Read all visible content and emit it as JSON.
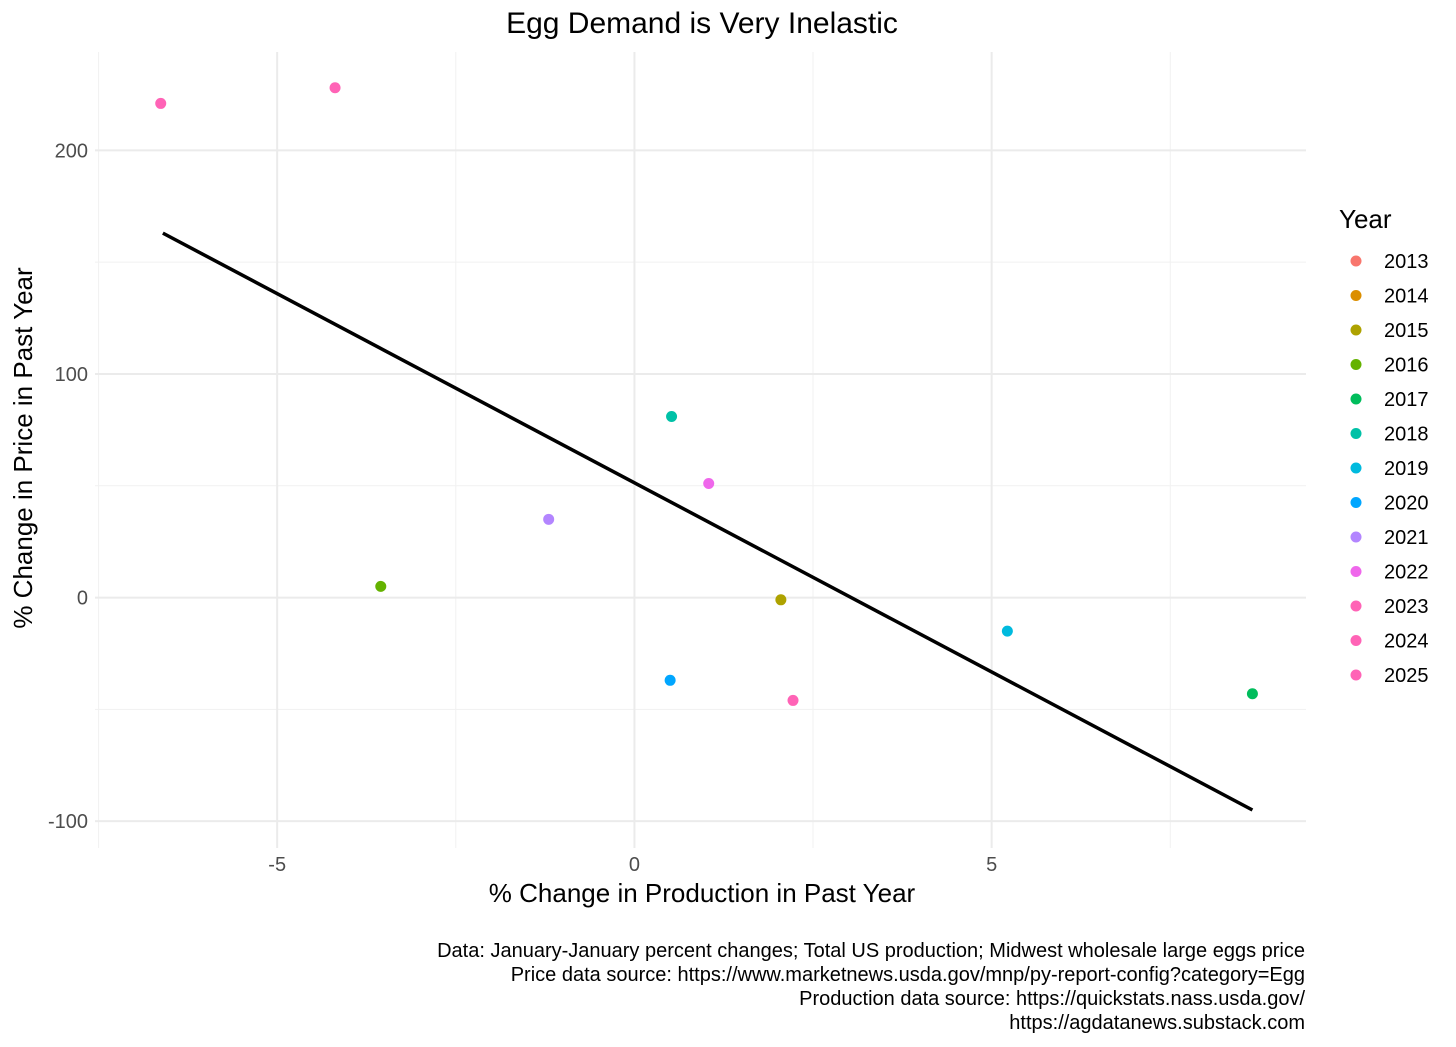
{
  "chart_data": {
    "type": "scatter",
    "title": "Egg Demand is Very Inelastic",
    "xlabel": "% Change in Production in Past Year",
    "ylabel": "% Change in Price in Past Year",
    "xlim": [
      -7.55,
      9.4
    ],
    "ylim": [
      -112,
      244
    ],
    "x_ticks": [
      -5,
      0,
      5
    ],
    "x_tick_labels": [
      "-5",
      "0",
      "5"
    ],
    "y_ticks": [
      -100,
      0,
      100,
      200
    ],
    "y_tick_labels": [
      "-100",
      "0",
      "100",
      "200"
    ],
    "grid": true,
    "legend_title": "Year",
    "legend_position": "right",
    "series": [
      {
        "name": "2013",
        "color": "#F8766D",
        "points": []
      },
      {
        "name": "2014",
        "color": "#DB8E00",
        "points": []
      },
      {
        "name": "2015",
        "color": "#AEA200",
        "points": [
          [
            2.05,
            -1
          ]
        ]
      },
      {
        "name": "2016",
        "color": "#64B200",
        "points": [
          [
            -3.55,
            5
          ]
        ]
      },
      {
        "name": "2017",
        "color": "#00BD5C",
        "points": [
          [
            8.65,
            -43
          ]
        ]
      },
      {
        "name": "2018",
        "color": "#00C1A7",
        "points": [
          [
            0.52,
            81
          ]
        ]
      },
      {
        "name": "2019",
        "color": "#00BADE",
        "points": [
          [
            5.22,
            -15
          ]
        ]
      },
      {
        "name": "2020",
        "color": "#00A6FF",
        "points": [
          [
            0.5,
            -37
          ]
        ]
      },
      {
        "name": "2021",
        "color": "#B385FF",
        "points": [
          [
            -1.2,
            35
          ]
        ]
      },
      {
        "name": "2022",
        "color": "#EF67EB",
        "points": [
          [
            1.04,
            51
          ]
        ]
      },
      {
        "name": "2023",
        "color": "#FF63B6",
        "points": [
          [
            -6.63,
            221
          ]
        ]
      },
      {
        "name": "2024",
        "color": "#FF63B6",
        "points": [
          [
            2.22,
            -46
          ]
        ]
      },
      {
        "name": "2025",
        "color": "#FF63B6",
        "points": [
          [
            -4.19,
            228
          ]
        ]
      }
    ],
    "fit_line": {
      "color": "#000000",
      "x": [
        -6.6,
        8.65
      ],
      "y": [
        163,
        -95
      ]
    },
    "captions": [
      "Data: January-January percent changes; Total US production; Midwest wholesale large eggs price",
      "Price data source: https://www.marketnews.usda.gov/mnp/py-report-config?category=Egg",
      "Production data source: https://quickstats.nass.usda.gov/",
      "https://agdatanews.substack.com"
    ]
  }
}
